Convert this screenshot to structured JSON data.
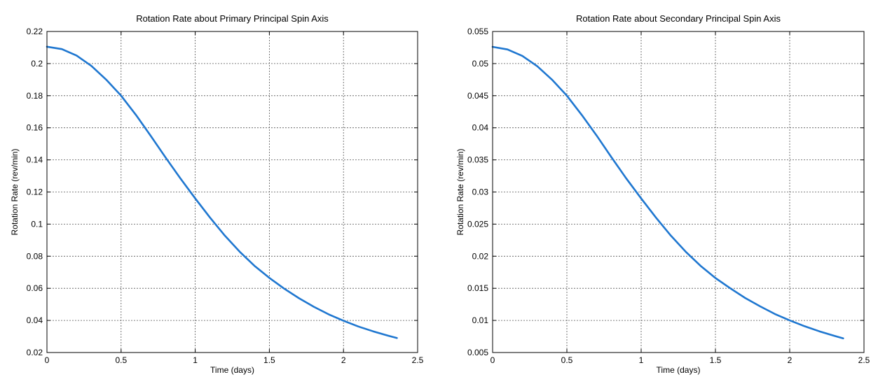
{
  "chart_data": [
    {
      "type": "line",
      "title": "Rotation Rate about Primary Principal Spin Axis",
      "xlabel": "Time (days)",
      "ylabel": "Rotation Rate (rev/min)",
      "xlim": [
        0,
        2.5
      ],
      "ylim": [
        0.02,
        0.22
      ],
      "xticks": [
        0,
        0.5,
        1,
        1.5,
        2,
        2.5
      ],
      "xtick_labels": [
        "0",
        "0.5",
        "1",
        "1.5",
        "2",
        "2.5"
      ],
      "yticks": [
        0.02,
        0.04,
        0.06,
        0.08,
        0.1,
        0.12,
        0.14,
        0.16,
        0.18,
        0.2,
        0.22
      ],
      "ytick_labels": [
        "0.02",
        "0.04",
        "0.06",
        "0.08",
        "0.1",
        "0.12",
        "0.14",
        "0.16",
        "0.18",
        "0.2",
        "0.22"
      ],
      "grid": true,
      "series": [
        {
          "color": "#1f77d0",
          "x": [
            0,
            0.1,
            0.2,
            0.3,
            0.4,
            0.5,
            0.6,
            0.7,
            0.8,
            0.9,
            1.0,
            1.1,
            1.2,
            1.3,
            1.4,
            1.5,
            1.6,
            1.7,
            1.8,
            1.9,
            2.0,
            2.1,
            2.2,
            2.3,
            2.36
          ],
          "y": [
            0.2105,
            0.209,
            0.205,
            0.1985,
            0.19,
            0.18,
            0.168,
            0.155,
            0.1415,
            0.1285,
            0.116,
            0.104,
            0.0928,
            0.0828,
            0.074,
            0.0665,
            0.0598,
            0.0538,
            0.0485,
            0.0438,
            0.0398,
            0.0362,
            0.0332,
            0.0305,
            0.029
          ]
        }
      ]
    },
    {
      "type": "line",
      "title": "Rotation Rate about Secondary Principal Spin Axis",
      "xlabel": "Time (days)",
      "ylabel": "Rotation Rate (rev/min)",
      "xlim": [
        0,
        2.5
      ],
      "ylim": [
        0.005,
        0.055
      ],
      "xticks": [
        0,
        0.5,
        1,
        1.5,
        2,
        2.5
      ],
      "xtick_labels": [
        "0",
        "0.5",
        "1",
        "1.5",
        "2",
        "2.5"
      ],
      "yticks": [
        0.005,
        0.01,
        0.015,
        0.02,
        0.025,
        0.03,
        0.035,
        0.04,
        0.045,
        0.05,
        0.055
      ],
      "ytick_labels": [
        "0.005",
        "0.01",
        "0.015",
        "0.02",
        "0.025",
        "0.03",
        "0.035",
        "0.04",
        "0.045",
        "0.05",
        "0.055"
      ],
      "grid": true,
      "series": [
        {
          "color": "#1f77d0",
          "x": [
            0,
            0.1,
            0.2,
            0.3,
            0.4,
            0.5,
            0.6,
            0.7,
            0.8,
            0.9,
            1.0,
            1.1,
            1.2,
            1.3,
            1.4,
            1.5,
            1.6,
            1.7,
            1.8,
            1.9,
            2.0,
            2.1,
            2.2,
            2.3,
            2.36
          ],
          "y": [
            0.0526,
            0.0522,
            0.0512,
            0.0496,
            0.0475,
            0.045,
            0.042,
            0.0388,
            0.0354,
            0.0321,
            0.029,
            0.026,
            0.0232,
            0.0207,
            0.0185,
            0.0166,
            0.015,
            0.0135,
            0.0122,
            0.011,
            0.01,
            0.0091,
            0.0083,
            0.0076,
            0.0072
          ]
        }
      ]
    }
  ]
}
